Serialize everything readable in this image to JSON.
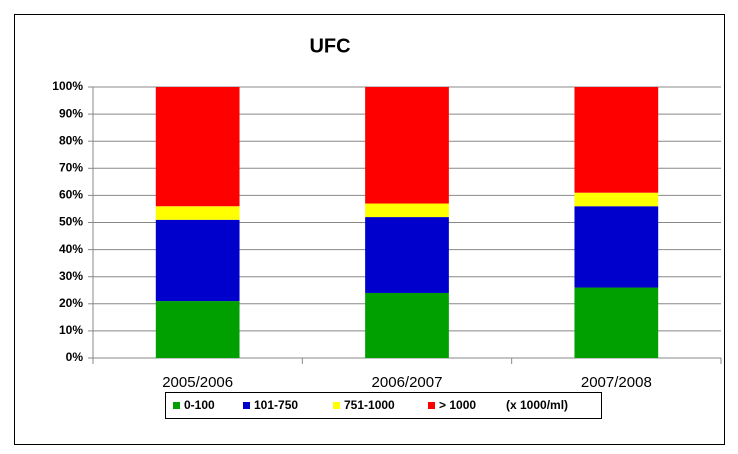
{
  "chart_data": {
    "type": "stacked_bar",
    "title": "UFC",
    "categories": [
      "2005/2006",
      "2006/2007",
      "2007/2008"
    ],
    "series": [
      {
        "name": "0-100",
        "color": "#00a000",
        "values": [
          21,
          24,
          26
        ]
      },
      {
        "name": "101-750",
        "color": "#0000cc",
        "values": [
          30,
          28,
          30
        ]
      },
      {
        "name": "751-1000",
        "color": "#ffff00",
        "values": [
          5,
          5,
          5
        ]
      },
      {
        "name": "> 1000",
        "color": "#ff0000",
        "values": [
          44,
          43,
          39
        ]
      }
    ],
    "legend_note": "(x 1000/ml)",
    "ylim": [
      0,
      100
    ],
    "yticks": [
      {
        "value": 0,
        "label": "0%"
      },
      {
        "value": 10,
        "label": "10%"
      },
      {
        "value": 20,
        "label": "20%"
      },
      {
        "value": 30,
        "label": "30%"
      },
      {
        "value": 40,
        "label": "40%"
      },
      {
        "value": 50,
        "label": "50%"
      },
      {
        "value": 60,
        "label": "60%"
      },
      {
        "value": 70,
        "label": "70%"
      },
      {
        "value": 80,
        "label": "80%"
      },
      {
        "value": 90,
        "label": "90%"
      },
      {
        "value": 100,
        "label": "100%"
      }
    ],
    "grid": true,
    "legend": "bottom"
  }
}
